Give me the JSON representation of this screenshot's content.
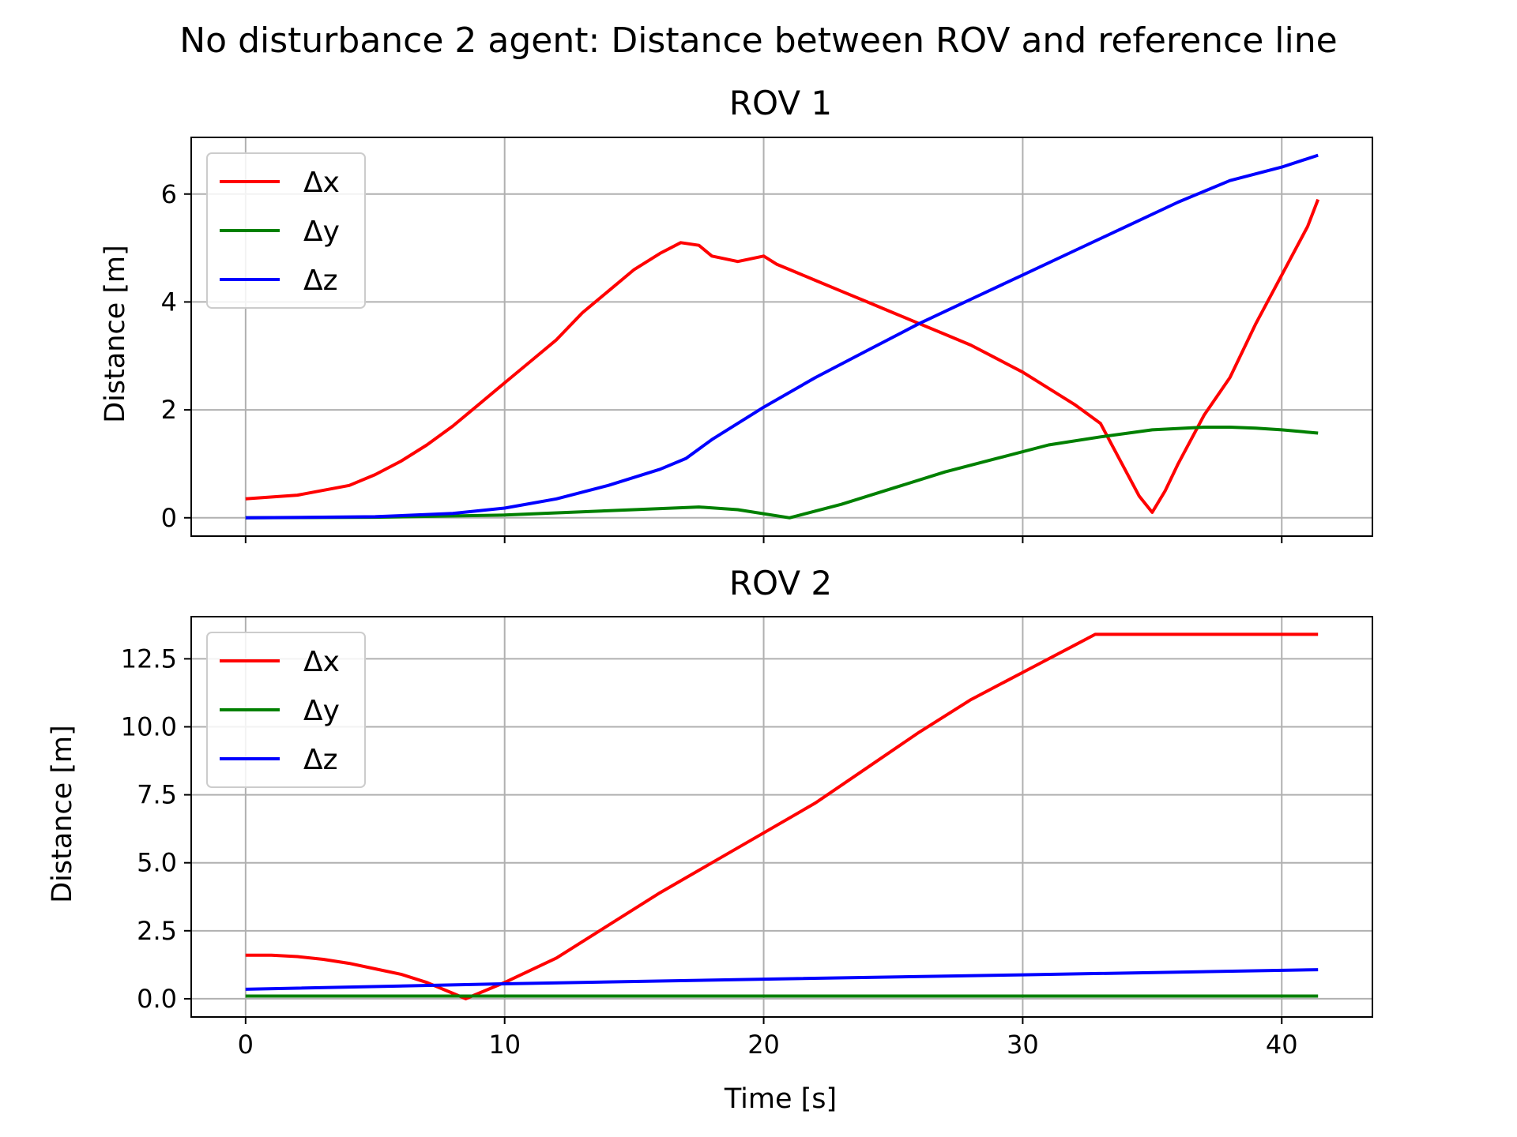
{
  "figure": {
    "suptitle": "No disturbance 2 agent: Distance between ROV and reference line"
  },
  "colors": {
    "dx": "#ff0000",
    "dy": "#008000",
    "dz": "#0000ff",
    "grid": "#b0b0b0"
  },
  "chart_data": [
    {
      "type": "line",
      "title": "ROV 1",
      "xlabel": "",
      "ylabel": "Distance [m]",
      "xlim": [
        -2.1,
        43.5
      ],
      "ylim": [
        -0.34,
        7.05
      ],
      "xticks": [
        0,
        10,
        20,
        30,
        40
      ],
      "xtick_labels": [
        "",
        "",
        "",
        "",
        ""
      ],
      "yticks": [
        0,
        2,
        4,
        6
      ],
      "ytick_labels": [
        "0",
        "2",
        "4",
        "6"
      ],
      "grid": true,
      "legend": {
        "placement": "upper left",
        "entries": [
          "Δx",
          "Δy",
          "Δz"
        ]
      },
      "series": [
        {
          "name": "Δx",
          "color": "#ff0000",
          "x": [
            0,
            2,
            4,
            5,
            6,
            7,
            8,
            9,
            10,
            11,
            12,
            13,
            14,
            15,
            16,
            16.8,
            17.5,
            18,
            19,
            20,
            20.5,
            21,
            22,
            23,
            24,
            25,
            26,
            27,
            28,
            29,
            30,
            31,
            32,
            33,
            33.5,
            34,
            34.5,
            35,
            35.5,
            36,
            37,
            38,
            39,
            40,
            41,
            41.4
          ],
          "y": [
            0.35,
            0.42,
            0.6,
            0.8,
            1.05,
            1.35,
            1.7,
            2.1,
            2.5,
            2.9,
            3.3,
            3.8,
            4.2,
            4.6,
            4.9,
            5.1,
            5.05,
            4.85,
            4.75,
            4.85,
            4.7,
            4.6,
            4.4,
            4.2,
            4.0,
            3.8,
            3.6,
            3.4,
            3.2,
            2.95,
            2.7,
            2.4,
            2.1,
            1.75,
            1.3,
            0.85,
            0.4,
            0.1,
            0.5,
            1.0,
            1.9,
            2.6,
            3.6,
            4.5,
            5.4,
            5.9
          ]
        },
        {
          "name": "Δy",
          "color": "#008000",
          "x": [
            0,
            5,
            10,
            15,
            17.5,
            19,
            21,
            23,
            25,
            27,
            29,
            31,
            33,
            35,
            37,
            38,
            39,
            40,
            41.4
          ],
          "y": [
            0,
            0.01,
            0.05,
            0.15,
            0.2,
            0.15,
            0.0,
            0.25,
            0.55,
            0.85,
            1.1,
            1.35,
            1.5,
            1.63,
            1.68,
            1.68,
            1.66,
            1.63,
            1.57
          ]
        },
        {
          "name": "Δz",
          "color": "#0000ff",
          "x": [
            0,
            5,
            8,
            10,
            12,
            14,
            16,
            17,
            18,
            20,
            22,
            24,
            26,
            28,
            30,
            32,
            34,
            36,
            38,
            40,
            41.4
          ],
          "y": [
            0,
            0.02,
            0.08,
            0.18,
            0.35,
            0.6,
            0.9,
            1.1,
            1.45,
            2.05,
            2.6,
            3.1,
            3.6,
            4.05,
            4.5,
            4.95,
            5.4,
            5.85,
            6.25,
            6.5,
            6.72
          ]
        }
      ]
    },
    {
      "type": "line",
      "title": "ROV 2",
      "xlabel": "Time [s]",
      "ylabel": "Distance [m]",
      "xlim": [
        -2.1,
        43.5
      ],
      "ylim": [
        -0.67,
        14.05
      ],
      "xticks": [
        0,
        10,
        20,
        30,
        40
      ],
      "xtick_labels": [
        "0",
        "10",
        "20",
        "30",
        "40"
      ],
      "yticks": [
        0,
        2.5,
        5,
        7.5,
        10,
        12.5
      ],
      "ytick_labels": [
        "0.0",
        "2.5",
        "5.0",
        "7.5",
        "10.0",
        "12.5"
      ],
      "grid": true,
      "legend": {
        "placement": "upper left",
        "entries": [
          "Δx",
          "Δy",
          "Δz"
        ]
      },
      "series": [
        {
          "name": "Δx",
          "color": "#ff0000",
          "x": [
            0,
            1,
            2,
            3,
            4,
            5,
            6,
            7,
            8,
            8.5,
            9,
            10,
            12,
            14,
            16,
            18,
            20,
            22,
            24,
            26,
            28,
            30,
            31,
            32,
            32.8,
            33,
            41.4
          ],
          "y": [
            1.6,
            1.6,
            1.55,
            1.45,
            1.3,
            1.1,
            0.9,
            0.6,
            0.2,
            0.0,
            0.2,
            0.6,
            1.5,
            2.7,
            3.9,
            5.0,
            6.1,
            7.2,
            8.5,
            9.8,
            11.0,
            12.0,
            12.5,
            13.0,
            13.4,
            13.4,
            13.4
          ]
        },
        {
          "name": "Δy",
          "color": "#008000",
          "x": [
            0,
            41.4
          ],
          "y": [
            0.1,
            0.1
          ]
        },
        {
          "name": "Δz",
          "color": "#0000ff",
          "x": [
            0,
            10,
            20,
            30,
            41.4
          ],
          "y": [
            0.35,
            0.55,
            0.72,
            0.88,
            1.07
          ]
        }
      ]
    }
  ]
}
